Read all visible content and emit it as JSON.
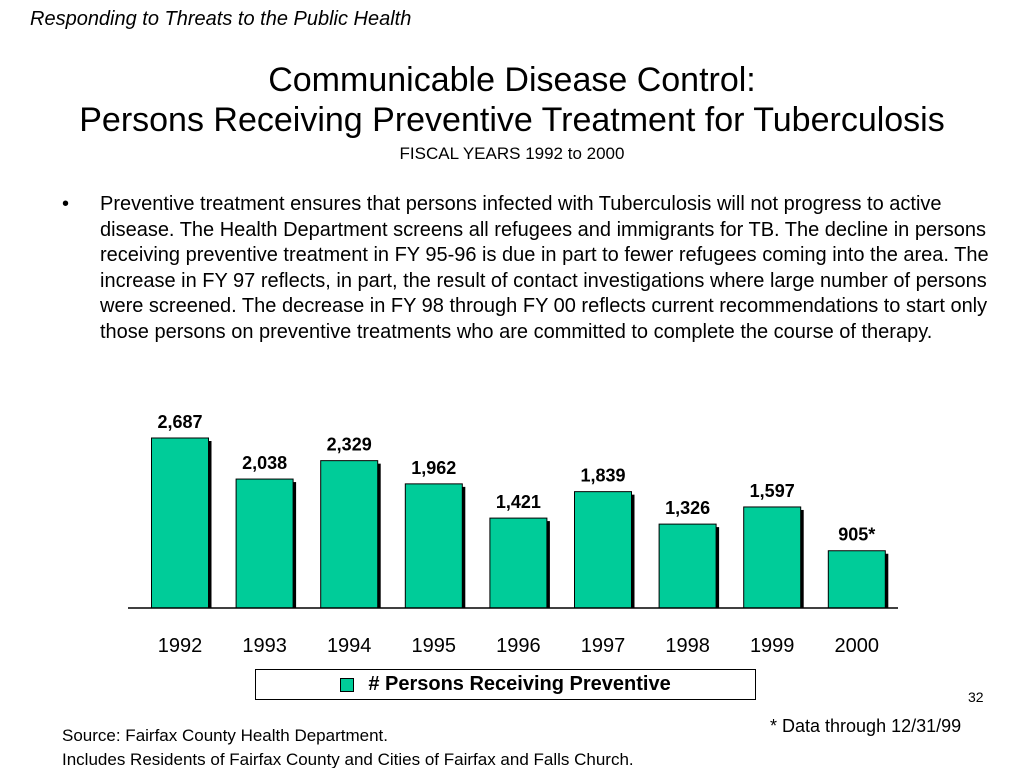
{
  "header": {
    "tag": "Responding to Threats to the Public Health"
  },
  "title": {
    "line1": "Communicable Disease Control:",
    "line2": "Persons Receiving Preventive Treatment for Tuberculosis",
    "subtitle": "FISCAL YEARS 1992 to 2000"
  },
  "bullet": {
    "marker": "•",
    "text": "Preventive treatment ensures that persons infected with Tuberculosis will not progress to active disease.  The Health Department screens all refugees and immigrants for TB.  The decline in persons receiving preventive treatment in FY 95-96 is due in part to fewer refugees coming into the area.  The increase in FY 97 reflects, in part, the result of contact investigations where large number of persons were screened.   The decrease in FY 98 through FY 00 reflects current recommendations to start only those persons on preventive treatments who are committed to complete the course of therapy."
  },
  "chart_data": {
    "type": "bar",
    "categories": [
      "1992",
      "1993",
      "1994",
      "1995",
      "1996",
      "1997",
      "1998",
      "1999",
      "2000"
    ],
    "values": [
      2687,
      2038,
      2329,
      1962,
      1421,
      1839,
      1326,
      1597,
      905
    ],
    "data_labels": [
      "2,687",
      "2,038",
      "2,329",
      "1,962",
      "1,421",
      "1,839",
      "1,326",
      "1,597",
      "905*"
    ],
    "series": [
      {
        "name": "# Persons Receiving  Preventive",
        "values": [
          2687,
          2038,
          2329,
          1962,
          1421,
          1839,
          1326,
          1597,
          905
        ]
      }
    ],
    "ylim": [
      0,
      2687
    ],
    "grid": false,
    "legend_position": "bottom",
    "bar_color": "#00CC99",
    "shadow_color": "#000000"
  },
  "legend": {
    "label": "# Persons Receiving  Preventive"
  },
  "page_number": "32",
  "footnote": "* Data through 12/31/99",
  "source": {
    "line1": "Source:  Fairfax County Health Department.",
    "line2": "Includes Residents of Fairfax County and Cities of Fairfax and Falls Church."
  },
  "colors": {
    "bar": "#00CC99",
    "text": "#000000",
    "background": "#FFFFFF"
  }
}
